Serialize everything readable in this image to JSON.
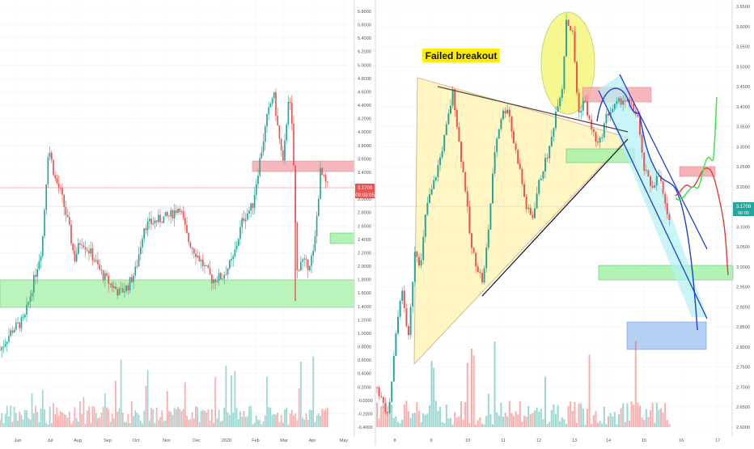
{
  "left_chart": {
    "y_ticks": [
      "5.8000",
      "5.6000",
      "5.4000",
      "5.2000",
      "5.0000",
      "4.8000",
      "4.6000",
      "4.4000",
      "4.2000",
      "4.0000",
      "3.8000",
      "3.6000",
      "3.4000",
      "3.2000",
      "3.0000",
      "2.8000",
      "2.6000",
      "2.4000",
      "2.2000",
      "2.0000",
      "1.8000",
      "1.6000",
      "1.4000",
      "1.2000",
      "1.0000",
      "0.8000",
      "0.6000",
      "0.4000",
      "0.2000",
      "-0.0000",
      "-0.2000",
      "-0.4000"
    ],
    "x_ticks": [
      "Jun",
      "Jul",
      "Aug",
      "Sep",
      "Oct",
      "Nov",
      "Dec",
      "2020",
      "Feb",
      "Mar",
      "Apr",
      "May"
    ],
    "price_label": "3.1709",
    "timer_label": "09:03:05"
  },
  "right_chart": {
    "annotation": "Failed breakout",
    "y_ticks": [
      "3.6500",
      "3.6000",
      "3.5500",
      "3.5000",
      "3.4500",
      "3.4000",
      "3.3500",
      "3.3000",
      "3.2500",
      "3.2000",
      "3.1500",
      "3.1000",
      "3.0500",
      "3.0000",
      "2.9500",
      "2.9000",
      "2.8500",
      "2.8000",
      "2.7500",
      "2.7000",
      "2.6500",
      "2.6000"
    ],
    "x_ticks": [
      "8",
      "9",
      "10",
      "11",
      "12",
      "13",
      "14",
      "15",
      "16",
      "17"
    ],
    "price_label": "3.1709",
    "timer_label": "06:05"
  },
  "colors": {
    "up": "#26a69a",
    "down": "#ef5350",
    "bg": "#ffffff"
  },
  "chart_data": [
    {
      "type": "candlestick",
      "x_ticks": [
        "Jun",
        "Jul",
        "Aug",
        "Sep",
        "Oct",
        "Nov",
        "Dec",
        "2020",
        "Feb",
        "Mar",
        "Apr",
        "May"
      ],
      "ylim": [
        -0.5,
        5.9
      ],
      "anchors": [
        [
          0,
          0.75
        ],
        [
          15,
          1.05
        ],
        [
          30,
          1.2
        ],
        [
          40,
          1.7
        ],
        [
          52,
          2.3
        ],
        [
          60,
          3.8
        ],
        [
          68,
          3.3
        ],
        [
          75,
          3.1
        ],
        [
          85,
          2.6
        ],
        [
          92,
          2.1
        ],
        [
          100,
          2.4
        ],
        [
          112,
          2.2
        ],
        [
          125,
          1.9
        ],
        [
          135,
          1.75
        ],
        [
          148,
          1.6
        ],
        [
          158,
          1.7
        ],
        [
          168,
          1.95
        ],
        [
          178,
          2.6
        ],
        [
          188,
          2.65
        ],
        [
          198,
          2.7
        ],
        [
          210,
          2.75
        ],
        [
          222,
          2.9
        ],
        [
          232,
          2.4
        ],
        [
          242,
          2.2
        ],
        [
          252,
          2.0
        ],
        [
          262,
          1.8
        ],
        [
          275,
          1.85
        ],
        [
          288,
          2.1
        ],
        [
          300,
          2.7
        ],
        [
          312,
          2.9
        ],
        [
          320,
          3.5
        ],
        [
          330,
          4.2
        ],
        [
          338,
          4.6
        ],
        [
          344,
          4.0
        ],
        [
          350,
          3.5
        ],
        [
          357,
          4.6
        ],
        [
          362,
          3.9
        ],
        [
          367,
          1.9
        ],
        [
          372,
          2.1
        ],
        [
          380,
          2.0
        ],
        [
          388,
          2.2
        ],
        [
          396,
          3.4
        ],
        [
          405,
          3.17
        ]
      ]
    },
    {
      "type": "candlestick",
      "x_ticks": [
        "8",
        "9",
        "10",
        "11",
        "12",
        "13",
        "14",
        "15",
        "16",
        "17"
      ],
      "ylim": [
        2.58,
        3.67
      ],
      "anchors": [
        [
          466,
          2.7
        ],
        [
          480,
          2.62
        ],
        [
          488,
          2.8
        ],
        [
          496,
          2.95
        ],
        [
          505,
          2.82
        ],
        [
          513,
          3.05
        ],
        [
          520,
          3.0
        ],
        [
          527,
          3.15
        ],
        [
          535,
          3.2
        ],
        [
          545,
          3.28
        ],
        [
          552,
          3.35
        ],
        [
          560,
          3.44
        ],
        [
          568,
          3.3
        ],
        [
          575,
          3.2
        ],
        [
          582,
          3.05
        ],
        [
          590,
          3.0
        ],
        [
          597,
          2.96
        ],
        [
          604,
          3.1
        ],
        [
          612,
          3.3
        ],
        [
          620,
          3.38
        ],
        [
          628,
          3.4
        ],
        [
          634,
          3.32
        ],
        [
          642,
          3.25
        ],
        [
          650,
          3.15
        ],
        [
          658,
          3.12
        ],
        [
          665,
          3.2
        ],
        [
          672,
          3.25
        ],
        [
          680,
          3.3
        ],
        [
          688,
          3.4
        ],
        [
          695,
          3.45
        ],
        [
          700,
          3.62
        ],
        [
          708,
          3.58
        ],
        [
          715,
          3.38
        ],
        [
          722,
          3.42
        ],
        [
          730,
          3.35
        ],
        [
          740,
          3.3
        ],
        [
          750,
          3.38
        ],
        [
          760,
          3.4
        ],
        [
          770,
          3.42
        ],
        [
          780,
          3.4
        ],
        [
          788,
          3.38
        ],
        [
          795,
          3.25
        ],
        [
          805,
          3.2
        ],
        [
          815,
          3.23
        ],
        [
          825,
          3.12
        ],
        [
          835,
          3.15
        ]
      ]
    }
  ]
}
